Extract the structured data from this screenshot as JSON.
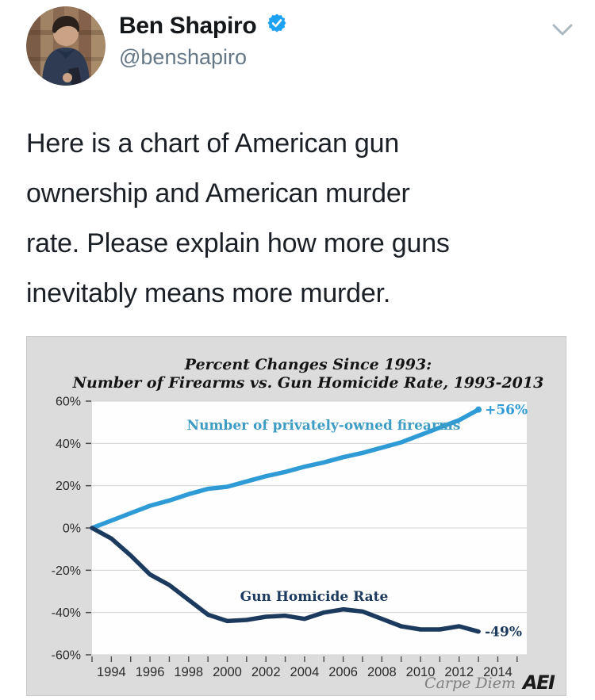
{
  "header": {
    "display_name": "Ben Shapiro",
    "handle": "@benshapiro",
    "verified": true
  },
  "tweet": {
    "lines": [
      "Here is a chart of American gun",
      "ownership and American murder",
      "rate. Please explain how more guns",
      "inevitably means more murder."
    ]
  },
  "chart_data": {
    "type": "line",
    "title_line1": "Percent Changes Since 1993:",
    "title_line2": "Number of Firearms vs. Gun Homicide Rate, 1993-2013",
    "x": [
      1993,
      1994,
      1995,
      1996,
      1997,
      1998,
      1999,
      2000,
      2001,
      2002,
      2003,
      2004,
      2005,
      2006,
      2007,
      2008,
      2009,
      2010,
      2011,
      2012,
      2013
    ],
    "series": [
      {
        "name": "Number of privately-owned firearms",
        "color": "#2e9bd6",
        "label_color": "#3d9cc3",
        "values": [
          0,
          3.5,
          7,
          10.5,
          13,
          16,
          18.5,
          19.5,
          22,
          24.5,
          26.5,
          29,
          31,
          33.5,
          35.5,
          38,
          40.5,
          44,
          47.5,
          51,
          56
        ],
        "end_label": "+56%"
      },
      {
        "name": "Gun Homicide Rate",
        "color": "#1c3a5e",
        "label_color": "#1c3a5e",
        "values": [
          0,
          -5,
          -13,
          -22,
          -27,
          -34,
          -41,
          -44,
          -43.5,
          -42,
          -41.5,
          -43,
          -40,
          -38.5,
          -39.5,
          -43,
          -46.5,
          -48,
          -48,
          -46.5,
          -49
        ],
        "end_label": "-49%"
      }
    ],
    "ylim": [
      -60,
      60
    ],
    "ytick_step": 20,
    "ytick_suffix": "%",
    "xlim": [
      1993,
      2015.5
    ],
    "xtick_labels": [
      1994,
      1996,
      1998,
      2000,
      2002,
      2004,
      2006,
      2008,
      2010,
      2012,
      2014
    ],
    "grid": true,
    "legend_position": "inline-labels",
    "credit": "Carpe Diem",
    "logo": "AEI"
  },
  "colors": {
    "accent_blue": "#2e9bd6",
    "navy": "#1c3a5e",
    "verified_blue": "#1da1f2",
    "handle_gray": "#657786",
    "panel_bg": "#dcdcdc",
    "gridline": "#d3d3d3",
    "plot_bg": "#fefefe"
  }
}
